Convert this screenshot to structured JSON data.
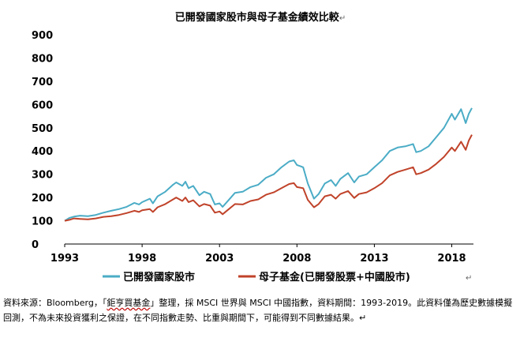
{
  "chart_data": {
    "type": "line",
    "title": "已開發國家股市與母子基金績效比較",
    "title_mark": "↵",
    "xlabel": "",
    "ylabel": "",
    "xlim": [
      1993,
      2019.4
    ],
    "ylim": [
      0,
      900
    ],
    "y_ticks": [
      0,
      100,
      200,
      300,
      400,
      500,
      600,
      700,
      800,
      900
    ],
    "x_ticks": [
      1993,
      1998,
      2003,
      2008,
      2013,
      2018
    ],
    "grid": false,
    "legend_position": "bottom",
    "series": [
      {
        "name": "已開發國家股市",
        "color": "#4bacc6",
        "points": [
          [
            1993.0,
            100
          ],
          [
            1993.3,
            112
          ],
          [
            1993.6,
            118
          ],
          [
            1994.0,
            122
          ],
          [
            1994.5,
            120
          ],
          [
            1995.0,
            125
          ],
          [
            1995.5,
            135
          ],
          [
            1996.0,
            143
          ],
          [
            1996.5,
            150
          ],
          [
            1997.0,
            160
          ],
          [
            1997.5,
            177
          ],
          [
            1997.8,
            170
          ],
          [
            1998.0,
            180
          ],
          [
            1998.5,
            195
          ],
          [
            1998.7,
            175
          ],
          [
            1999.0,
            205
          ],
          [
            1999.5,
            225
          ],
          [
            2000.0,
            255
          ],
          [
            2000.2,
            265
          ],
          [
            2000.6,
            250
          ],
          [
            2000.8,
            268
          ],
          [
            2001.0,
            240
          ],
          [
            2001.3,
            250
          ],
          [
            2001.7,
            210
          ],
          [
            2002.0,
            225
          ],
          [
            2002.4,
            215
          ],
          [
            2002.7,
            170
          ],
          [
            2003.0,
            175
          ],
          [
            2003.2,
            160
          ],
          [
            2003.6,
            190
          ],
          [
            2004.0,
            220
          ],
          [
            2004.5,
            225
          ],
          [
            2005.0,
            245
          ],
          [
            2005.5,
            255
          ],
          [
            2006.0,
            285
          ],
          [
            2006.5,
            300
          ],
          [
            2007.0,
            330
          ],
          [
            2007.5,
            355
          ],
          [
            2007.8,
            360
          ],
          [
            2008.0,
            340
          ],
          [
            2008.4,
            330
          ],
          [
            2008.7,
            260
          ],
          [
            2009.1,
            195
          ],
          [
            2009.4,
            215
          ],
          [
            2009.8,
            260
          ],
          [
            2010.2,
            275
          ],
          [
            2010.5,
            250
          ],
          [
            2010.8,
            280
          ],
          [
            2011.3,
            305
          ],
          [
            2011.7,
            265
          ],
          [
            2012.0,
            290
          ],
          [
            2012.5,
            300
          ],
          [
            2013.0,
            330
          ],
          [
            2013.5,
            360
          ],
          [
            2014.0,
            400
          ],
          [
            2014.5,
            415
          ],
          [
            2015.0,
            420
          ],
          [
            2015.5,
            430
          ],
          [
            2015.7,
            395
          ],
          [
            2016.0,
            400
          ],
          [
            2016.5,
            420
          ],
          [
            2017.0,
            460
          ],
          [
            2017.5,
            500
          ],
          [
            2018.0,
            560
          ],
          [
            2018.2,
            535
          ],
          [
            2018.6,
            580
          ],
          [
            2018.9,
            520
          ],
          [
            2019.1,
            560
          ],
          [
            2019.3,
            585
          ]
        ]
      },
      {
        "name": "母子基金(已開發股票+中國股市)",
        "color": "#c0432a",
        "points": [
          [
            1993.0,
            100
          ],
          [
            1993.3,
            104
          ],
          [
            1993.6,
            110
          ],
          [
            1994.0,
            108
          ],
          [
            1994.5,
            106
          ],
          [
            1995.0,
            110
          ],
          [
            1995.5,
            117
          ],
          [
            1996.0,
            120
          ],
          [
            1996.5,
            125
          ],
          [
            1997.0,
            133
          ],
          [
            1997.5,
            143
          ],
          [
            1997.8,
            138
          ],
          [
            1998.0,
            145
          ],
          [
            1998.5,
            150
          ],
          [
            1998.7,
            138
          ],
          [
            1999.0,
            158
          ],
          [
            1999.5,
            172
          ],
          [
            2000.0,
            192
          ],
          [
            2000.2,
            200
          ],
          [
            2000.6,
            185
          ],
          [
            2000.8,
            200
          ],
          [
            2001.0,
            180
          ],
          [
            2001.3,
            188
          ],
          [
            2001.7,
            162
          ],
          [
            2002.0,
            172
          ],
          [
            2002.4,
            165
          ],
          [
            2002.7,
            135
          ],
          [
            2003.0,
            140
          ],
          [
            2003.2,
            128
          ],
          [
            2003.6,
            150
          ],
          [
            2004.0,
            172
          ],
          [
            2004.5,
            170
          ],
          [
            2005.0,
            185
          ],
          [
            2005.5,
            192
          ],
          [
            2006.0,
            212
          ],
          [
            2006.5,
            222
          ],
          [
            2007.0,
            240
          ],
          [
            2007.5,
            258
          ],
          [
            2007.8,
            262
          ],
          [
            2008.0,
            245
          ],
          [
            2008.4,
            240
          ],
          [
            2008.7,
            190
          ],
          [
            2009.1,
            158
          ],
          [
            2009.4,
            172
          ],
          [
            2009.8,
            205
          ],
          [
            2010.2,
            212
          ],
          [
            2010.5,
            195
          ],
          [
            2010.8,
            215
          ],
          [
            2011.3,
            228
          ],
          [
            2011.7,
            198
          ],
          [
            2012.0,
            215
          ],
          [
            2012.5,
            222
          ],
          [
            2013.0,
            240
          ],
          [
            2013.5,
            262
          ],
          [
            2014.0,
            295
          ],
          [
            2014.5,
            310
          ],
          [
            2015.0,
            320
          ],
          [
            2015.5,
            330
          ],
          [
            2015.7,
            300
          ],
          [
            2016.0,
            305
          ],
          [
            2016.5,
            320
          ],
          [
            2017.0,
            345
          ],
          [
            2017.5,
            375
          ],
          [
            2018.0,
            415
          ],
          [
            2018.2,
            400
          ],
          [
            2018.6,
            440
          ],
          [
            2018.9,
            405
          ],
          [
            2019.1,
            445
          ],
          [
            2019.3,
            470
          ]
        ]
      }
    ],
    "legend_mark": "↵"
  },
  "source_note": {
    "prefix": "資料來源：Bloomberg，「",
    "fund_name": "鉅亨買基金",
    "rest_line1": "」整理，採 MSCI 世界與 MSCI 中國指數，資料期間：1993-2019。此資料僅為歷史數據模擬回測，不為未來投資獲利之保證，在不同指數走勢、比重與期間下，可能得到不同數據結果。",
    "mark": "↵"
  }
}
